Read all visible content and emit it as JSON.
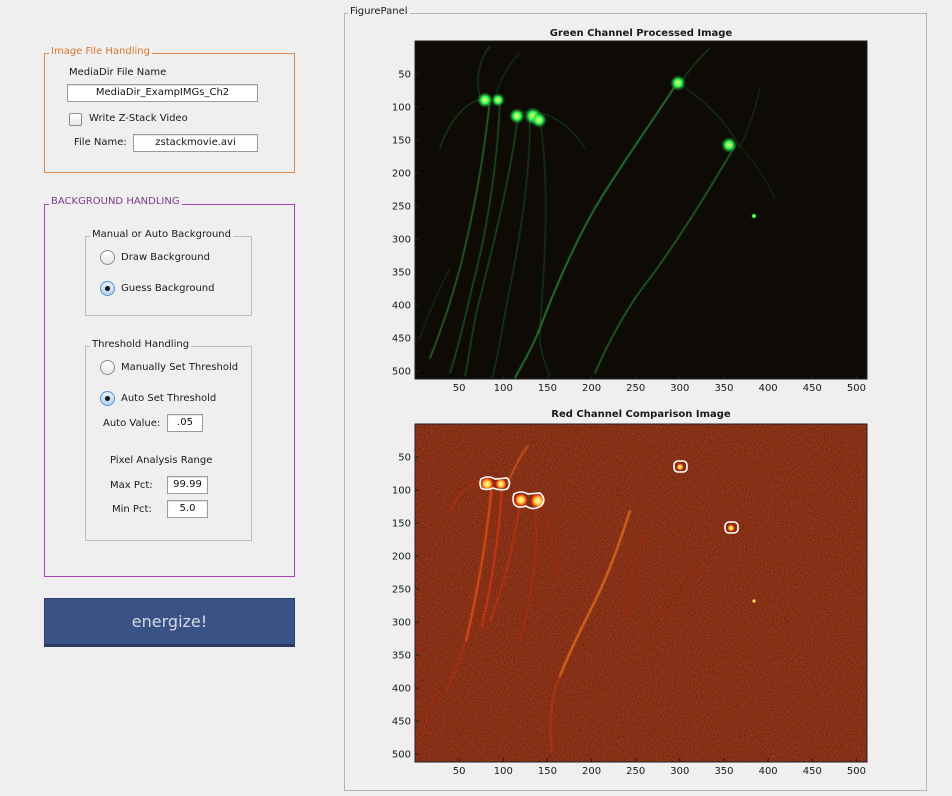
{
  "image_file_handling": {
    "title": "Image File Handling",
    "mediadir_label": "MediaDir File Name",
    "mediadir_value": "MediaDir_ExampIMGs_Ch2",
    "write_zstack_label": "Write Z-Stack Video",
    "write_zstack_checked": false,
    "file_name_label": "File Name:",
    "file_name_value": "zstackmovie.avi"
  },
  "background_handling": {
    "title": "BACKGROUND HANDLING",
    "manual_auto": {
      "title": "Manual or Auto Background",
      "option_draw": "Draw Background",
      "option_guess": "Guess Background",
      "selected": "guess"
    },
    "threshold": {
      "title": "Threshold Handling",
      "option_manual": "Manually Set Threshold",
      "option_auto": "Auto Set Threshold",
      "selected": "auto",
      "auto_value_label": "Auto Value:",
      "auto_value": ".05",
      "pixel_range_label": "Pixel Analysis Range",
      "max_pct_label": "Max Pct:",
      "max_pct_value": "99.99",
      "min_pct_label": "Min Pct:",
      "min_pct_value": "5.0"
    }
  },
  "energize_label": "energize!",
  "figure_panel": {
    "title": "FigurePanel",
    "green_title": "Green Channel Processed Image",
    "red_title": "Red Channel Comparison Image"
  },
  "colors": {
    "orange_frame": "#e08a4a",
    "purple_frame": "#a347b0",
    "button_bg": "#3b5287",
    "green_bg": "#0e0b06",
    "red_bg": "#230707"
  },
  "chart_data": [
    {
      "type": "image",
      "title": "Green Channel Processed Image",
      "xticks": [
        50,
        100,
        150,
        200,
        250,
        300,
        350,
        400,
        450,
        500
      ],
      "yticks": [
        50,
        100,
        150,
        200,
        250,
        300,
        350,
        400,
        450,
        500
      ],
      "xlim": [
        0,
        512
      ],
      "ylim": [
        0,
        512
      ],
      "y_reversed": true,
      "bright_spots": [
        {
          "x": 82,
          "y": 88
        },
        {
          "x": 97,
          "y": 88
        },
        {
          "x": 117,
          "y": 112
        },
        {
          "x": 135,
          "y": 112
        },
        {
          "x": 142,
          "y": 117
        },
        {
          "x": 300,
          "y": 64
        },
        {
          "x": 358,
          "y": 158
        },
        {
          "x": 387,
          "y": 267
        }
      ]
    },
    {
      "type": "image",
      "title": "Red Channel Comparison Image",
      "xticks": [
        50,
        100,
        150,
        200,
        250,
        300,
        350,
        400,
        450,
        500
      ],
      "yticks": [
        50,
        100,
        150,
        200,
        250,
        300,
        350,
        400,
        450,
        500
      ],
      "xlim": [
        0,
        512
      ],
      "ylim": [
        0,
        512
      ],
      "y_reversed": true,
      "outlined_regions": [
        {
          "x": 85,
          "y": 92
        },
        {
          "x": 100,
          "y": 92
        },
        {
          "x": 121,
          "y": 117
        },
        {
          "x": 140,
          "y": 120
        },
        {
          "x": 301,
          "y": 65
        },
        {
          "x": 358,
          "y": 161
        }
      ]
    }
  ]
}
